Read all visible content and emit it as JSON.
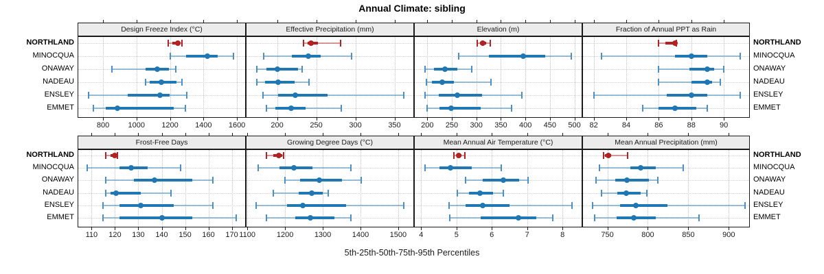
{
  "title": "Annual Climate: sibling",
  "caption": "5th-25th-50th-75th-95th Percentiles",
  "percentile_labels": [
    "5th",
    "25th",
    "50th",
    "75th",
    "95th"
  ],
  "sites": [
    "NORTHLAND",
    "MINOCQUA",
    "ONAWAY",
    "NADEAU",
    "ENSLEY",
    "EMMET"
  ],
  "highlight_site": "NORTHLAND",
  "colors": {
    "highlight_main": "#b22222",
    "highlight_light": "rgba(178,34,34,0.45)",
    "highlight_cap": "#b22222",
    "normal_main": "#1f77b4",
    "normal_light": "rgba(31,119,180,0.45)",
    "normal_cap": "#4a90c4",
    "strip_bg": "#ececec",
    "border": "#1a1a1a",
    "grid": "#c4c4c4"
  },
  "chart_data": {
    "type": "dotplot-percentiles",
    "note": "Each row shows 5th-25th-50th-75th-95th percentile whiskers; values per site follow sites order",
    "panels": [
      {
        "title": "Design Freeze Index (°C)",
        "grid_row": 0,
        "grid_col": 0,
        "domain": [
          648,
          1653
        ],
        "ticks": [
          800,
          1000,
          1200,
          1400,
          1600
        ],
        "values": [
          [
            1191,
            1215,
            1248,
            1260,
            1273
          ],
          [
            1200,
            1296,
            1422,
            1485,
            1581
          ],
          [
            853,
            1053,
            1124,
            1193,
            1233
          ],
          [
            1053,
            1080,
            1149,
            1240,
            1273
          ],
          [
            713,
            947,
            1140,
            1197,
            1300
          ],
          [
            744,
            816,
            887,
            1224,
            1291
          ]
        ]
      },
      {
        "title": "Effective Precipitation (mm)",
        "grid_row": 0,
        "grid_col": 1,
        "domain": [
          160,
          375
        ],
        "ticks": [
          200,
          250,
          300,
          350
        ],
        "values": [
          [
            234,
            239,
            243,
            252,
            281
          ],
          [
            183,
            219,
            240,
            256,
            295
          ],
          [
            174,
            186,
            200,
            227,
            232
          ],
          [
            174,
            185,
            201,
            222,
            241
          ],
          [
            182,
            201,
            223,
            264,
            362
          ],
          [
            186,
            198,
            218,
            236,
            282
          ]
        ]
      },
      {
        "title": "Elevation (m)",
        "grid_row": 0,
        "grid_col": 2,
        "domain": [
          173,
          516
        ],
        "ticks": [
          200,
          250,
          300,
          350,
          400,
          450,
          500
        ],
        "values": [
          [
            302,
            307,
            313,
            320,
            328
          ],
          [
            264,
            326,
            395,
            441,
            494
          ],
          [
            196,
            214,
            236,
            261,
            291
          ],
          [
            198,
            210,
            231,
            254,
            330
          ],
          [
            195,
            224,
            261,
            312,
            393
          ],
          [
            199,
            225,
            249,
            309,
            372
          ]
        ]
      },
      {
        "title": "Fraction of Annual PPT as Rain",
        "grid_row": 0,
        "grid_col": 3,
        "domain": [
          81.3,
          91.6
        ],
        "ticks": [
          82,
          84,
          86,
          88,
          90
        ],
        "values": [
          [
            86.0,
            86.4,
            87.0,
            87.05,
            87.1
          ],
          [
            82.5,
            87.0,
            88.0,
            89.0,
            91.0
          ],
          [
            86.0,
            87.9,
            89.0,
            89.4,
            90.0
          ],
          [
            86.0,
            88.0,
            89.0,
            89.3,
            89.8
          ],
          [
            82.0,
            86.5,
            88.0,
            89.0,
            91.0
          ],
          [
            85.0,
            86.0,
            87.0,
            88.3,
            89.0
          ]
        ]
      },
      {
        "title": "Frost-Free Days",
        "grid_row": 1,
        "grid_col": 0,
        "domain": [
          104,
          176
        ],
        "ticks": [
          110,
          120,
          130,
          140,
          150,
          160,
          170
        ],
        "values": [
          [
            116,
            118,
            120,
            120.5,
            121
          ],
          [
            108,
            122,
            127,
            134,
            148
          ],
          [
            116,
            128,
            137,
            153,
            162
          ],
          [
            116,
            118,
            120.5,
            131,
            144
          ],
          [
            115,
            122,
            131,
            145,
            162
          ],
          [
            115,
            122,
            140,
            153,
            172
          ]
        ]
      },
      {
        "title": "Growing Degree Days (°C)",
        "grid_row": 1,
        "grid_col": 1,
        "domain": [
          1096,
          1542
        ],
        "ticks": [
          1100,
          1200,
          1300,
          1400,
          1500
        ],
        "values": [
          [
            1151,
            1168,
            1183,
            1192,
            1197
          ],
          [
            1128,
            1185,
            1223,
            1273,
            1375
          ],
          [
            1199,
            1239,
            1291,
            1351,
            1402
          ],
          [
            1169,
            1236,
            1270,
            1300,
            1314
          ],
          [
            1124,
            1206,
            1247,
            1361,
            1515
          ],
          [
            1151,
            1227,
            1267,
            1330,
            1375
          ]
        ]
      },
      {
        "title": "Mean Annual Air Temperature (°C)",
        "grid_row": 1,
        "grid_col": 2,
        "domain": [
          3.8,
          8.56
        ],
        "ticks": [
          4,
          5,
          6,
          7,
          8
        ],
        "values": [
          [
            4.92,
            5.0,
            5.07,
            5.15,
            5.23
          ],
          [
            4.12,
            4.51,
            4.83,
            5.44,
            6.26
          ],
          [
            5.26,
            5.75,
            6.33,
            6.78,
            7.02
          ],
          [
            5.03,
            5.36,
            5.66,
            6.04,
            6.33
          ],
          [
            4.8,
            5.26,
            5.75,
            6.51,
            8.26
          ],
          [
            4.81,
            5.68,
            6.75,
            7.26,
            7.73
          ]
        ]
      },
      {
        "title": "Mean Annual Precipitation (mm)",
        "grid_row": 1,
        "grid_col": 3,
        "domain": [
          719,
          926
        ],
        "ticks": [
          750,
          800,
          850,
          900
        ],
        "values": [
          [
            745,
            747,
            751,
            755,
            775
          ],
          [
            740,
            778,
            791,
            810,
            844
          ],
          [
            736,
            760,
            774,
            801,
            812
          ],
          [
            743,
            762,
            773,
            791,
            799
          ],
          [
            732,
            766,
            785,
            824,
            920
          ],
          [
            734,
            761,
            783,
            810,
            863
          ]
        ]
      }
    ]
  }
}
